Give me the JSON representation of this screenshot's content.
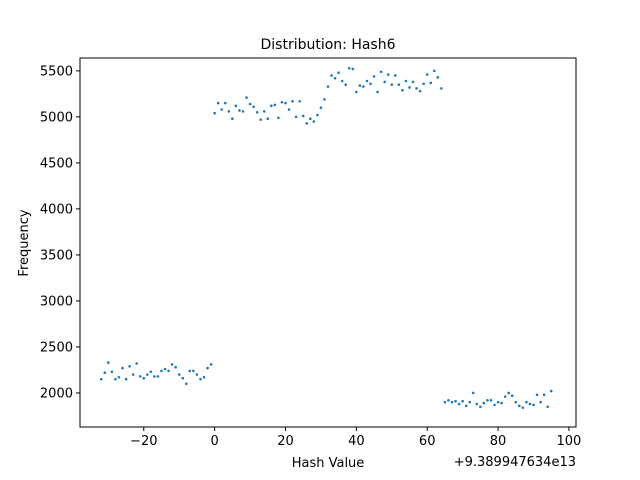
{
  "colors": {
    "point": "#1f77b4",
    "axis": "#000000",
    "background": "#ffffff"
  },
  "chart_data": {
    "type": "scatter",
    "title": "Distribution: Hash6",
    "xlabel": "Hash Value",
    "ylabel": "Frequency",
    "x_offset_label": "+9.389947634e13",
    "xlim": [
      -38,
      102
    ],
    "ylim": [
      1630,
      5640
    ],
    "grid": false,
    "legend": "none",
    "x_ticks": [
      {
        "value": -20,
        "label": "−20"
      },
      {
        "value": 0,
        "label": "0"
      },
      {
        "value": 20,
        "label": "20"
      },
      {
        "value": 40,
        "label": "40"
      },
      {
        "value": 60,
        "label": "60"
      },
      {
        "value": 80,
        "label": "80"
      },
      {
        "value": 100,
        "label": "100"
      }
    ],
    "y_ticks": [
      {
        "value": 2000,
        "label": "2000"
      },
      {
        "value": 2500,
        "label": "2500"
      },
      {
        "value": 3000,
        "label": "3000"
      },
      {
        "value": 3500,
        "label": "3500"
      },
      {
        "value": 4000,
        "label": "4000"
      },
      {
        "value": 4500,
        "label": "4500"
      },
      {
        "value": 5000,
        "label": "5000"
      },
      {
        "value": 5500,
        "label": "5500"
      }
    ],
    "series": [
      {
        "x": [
          -32,
          -31,
          -30,
          -29,
          -28,
          -27,
          -26,
          -25,
          -24,
          -23,
          -22,
          -21,
          -20,
          -19,
          -18,
          -17,
          -16,
          -15,
          -14,
          -13,
          -12,
          -11,
          -10,
          -9,
          -8,
          -7,
          -6,
          -5,
          -4,
          -3,
          -2,
          -1,
          0,
          1,
          2,
          3,
          4,
          5,
          6,
          7,
          8,
          9,
          10,
          11,
          12,
          13,
          14,
          15,
          16,
          17,
          18,
          19,
          20,
          21,
          22,
          23,
          24,
          25,
          26,
          27,
          28,
          29,
          30,
          31,
          32,
          33,
          34,
          35,
          36,
          37,
          38,
          39,
          40,
          41,
          42,
          43,
          44,
          45,
          46,
          47,
          48,
          49,
          50,
          51,
          52,
          53,
          54,
          55,
          56,
          57,
          58,
          59,
          60,
          61,
          62,
          63,
          64,
          65,
          66,
          67,
          68,
          69,
          70,
          71,
          72,
          73,
          74,
          75,
          76,
          77,
          78,
          79,
          80,
          81,
          82,
          83,
          84,
          85,
          86,
          87,
          88,
          89,
          90,
          91,
          92,
          93,
          94,
          95
        ],
        "y": [
          2150,
          2220,
          2330,
          2230,
          2150,
          2170,
          2270,
          2150,
          2290,
          2200,
          2320,
          2180,
          2160,
          2200,
          2230,
          2180,
          2180,
          2240,
          2260,
          2240,
          2310,
          2280,
          2200,
          2160,
          2100,
          2240,
          2240,
          2200,
          2150,
          2170,
          2270,
          2310,
          5040,
          5150,
          5080,
          5150,
          5060,
          4980,
          5120,
          5070,
          5060,
          5210,
          5140,
          5110,
          5050,
          4970,
          5060,
          4980,
          5120,
          5130,
          4990,
          5160,
          5150,
          5080,
          5170,
          5000,
          5170,
          5010,
          4930,
          4980,
          4950,
          5020,
          5100,
          5190,
          5330,
          5450,
          5420,
          5480,
          5390,
          5350,
          5530,
          5520,
          5270,
          5340,
          5330,
          5390,
          5360,
          5440,
          5270,
          5490,
          5380,
          5460,
          5350,
          5450,
          5350,
          5290,
          5390,
          5320,
          5380,
          5310,
          5280,
          5360,
          5460,
          5370,
          5500,
          5430,
          5310,
          1900,
          1920,
          1900,
          1910,
          1880,
          1910,
          1860,
          1900,
          2000,
          1880,
          1850,
          1890,
          1920,
          1920,
          1870,
          1900,
          1890,
          1960,
          2000,
          1970,
          1900,
          1860,
          1840,
          1900,
          1880,
          1870,
          1980,
          1900,
          1980,
          1850,
          2020
        ]
      }
    ]
  }
}
